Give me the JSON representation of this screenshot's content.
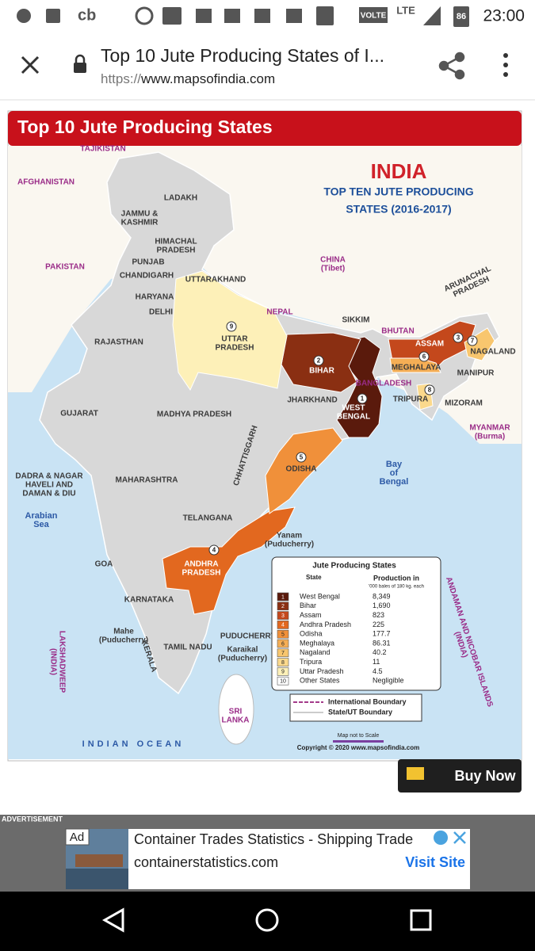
{
  "status_bar": {
    "carrier_icon": "cb",
    "volte": "VOLTE",
    "network": "LTE",
    "battery": "86",
    "time": "23:00"
  },
  "browser": {
    "title": "Top 10 Jute Producing States of I...",
    "url_scheme": "https://",
    "url_host": "www.mapsofindia.com"
  },
  "map": {
    "header": "Top 10 Jute Producing States",
    "title": "INDIA",
    "subtitle": [
      "TOP TEN JUTE PRODUCING",
      "STATES (2016-2017)"
    ],
    "labels": [
      [
        "TAJIKISTAN"
      ],
      [
        "AFGHANISTAN"
      ],
      [
        "PAKISTAN"
      ],
      [
        "LADAKH"
      ],
      [
        "JAMMU &",
        "KASHMIR"
      ],
      [
        "HIMACHAL",
        "PRADESH"
      ],
      [
        "PUNJAB"
      ],
      [
        "CHANDIGARH"
      ],
      [
        "UTTARAKHAND"
      ],
      [
        "HARYANA"
      ],
      [
        "DELHI"
      ],
      [
        "CHINA",
        "(Tibet)"
      ],
      [
        "NEPAL"
      ],
      [
        "SIKKIM"
      ],
      [
        "BHUTAN"
      ],
      [
        "ARUNACHAL",
        "PRADESH"
      ],
      [
        "ASSAM"
      ],
      [
        "NAGALAND"
      ],
      [
        "MANIPUR"
      ],
      [
        "MEGHALAYA"
      ],
      [
        "BANGLADESH"
      ],
      [
        "TRIPURA"
      ],
      [
        "MIZORAM"
      ],
      [
        "MYANMAR",
        "(Burma)"
      ],
      [
        "RAJASTHAN"
      ],
      [
        "UTTAR",
        "PRADESH"
      ],
      [
        "BIHAR"
      ],
      [
        "JHARKHAND"
      ],
      [
        "WEST",
        "BENGAL"
      ],
      [
        "GUJARAT"
      ],
      [
        "MADHYA PRADESH"
      ],
      [
        "CHHATTISGARH"
      ],
      [
        "ODISHA"
      ],
      [
        "DADRA & NAGAR",
        "HAVELI AND",
        "DAMAN & DIU"
      ],
      [
        "MAHARASHTRA"
      ],
      [
        "Bay",
        "of",
        "Bengal"
      ],
      [
        "Arabian",
        "Sea"
      ],
      [
        "TELANGANA"
      ],
      [
        "Yanam",
        "(Puducherry)"
      ],
      [
        "GOA"
      ],
      [
        "ANDHRA",
        "PRADESH"
      ],
      [
        "KARNATAKA"
      ],
      [
        "Mahe",
        "(Puducherry)"
      ],
      [
        "TAMIL NADU"
      ],
      [
        "PUDUCHERRY"
      ],
      [
        "Karaikal",
        "(Puducherry)"
      ],
      [
        "KERALA"
      ],
      [
        "LAKSHADWEEP",
        "(INDIA)"
      ],
      [
        "SRI",
        "LANKA"
      ],
      [
        "INDIAN   OCEAN"
      ],
      [
        "ANDAMAN AND NICOBAR ISLANDS",
        "(INDIA)"
      ]
    ],
    "legend": {
      "title": "Jute Producing States",
      "col_state": "State",
      "col_value": "Production in",
      "col_unit": "'000 bales of 180 kg. each",
      "rows": [
        {
          "rank": "1",
          "state": "West Bengal",
          "value": "8,349",
          "color": "#5a1a0c"
        },
        {
          "rank": "2",
          "state": "Bihar",
          "value": "1,690",
          "color": "#8a2f12"
        },
        {
          "rank": "3",
          "state": "Assam",
          "value": "823",
          "color": "#c4481c"
        },
        {
          "rank": "4",
          "state": "Andhra Pradesh",
          "value": "225",
          "color": "#e2681f"
        },
        {
          "rank": "5",
          "state": "Odisha",
          "value": "177.7",
          "color": "#f0903a"
        },
        {
          "rank": "6",
          "state": "Meghalaya",
          "value": "86.31",
          "color": "#f5ae55"
        },
        {
          "rank": "7",
          "state": "Nagaland",
          "value": "40.2",
          "color": "#f8c66e"
        },
        {
          "rank": "8",
          "state": "Tripura",
          "value": "11",
          "color": "#fbd98c"
        },
        {
          "rank": "9",
          "state": "Uttar Pradesh",
          "value": "4.5",
          "color": "#fdf0b8"
        },
        {
          "rank": "10",
          "state": "Other States",
          "value": "Negligible",
          "color": "#ffffff"
        }
      ],
      "boundary_international": "International Boundary",
      "boundary_state": "State/UT Boundary"
    },
    "scale_note": "Map not to Scale",
    "copyright": "Copyright © 2020 www.mapsofindia.com"
  },
  "buy_button": "Buy Now",
  "ad": {
    "banner": "ADVERTISEMENT",
    "badge": "Ad",
    "headline": "Container Trades Statistics - Shipping Trade",
    "domain": "containerstatistics.com",
    "cta": "Visit Site"
  }
}
